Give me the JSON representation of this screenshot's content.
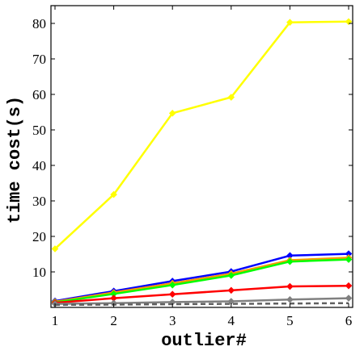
{
  "chart_data": {
    "type": "line",
    "title": "",
    "xlabel": "outlier#",
    "ylabel": "time cost(s)",
    "x": [
      1,
      2,
      3,
      4,
      5,
      6
    ],
    "xticks": [
      "1",
      "2",
      "3",
      "4",
      "5",
      "6"
    ],
    "xlim": [
      1,
      6
    ],
    "yticks": [
      "10",
      "20",
      "30",
      "40",
      "50",
      "60",
      "70",
      "80"
    ],
    "ylim": [
      0,
      85
    ],
    "grid": false,
    "legend": "none",
    "series": [
      {
        "color": "#ffff00",
        "marker": "diamond",
        "dash": "solid",
        "values": [
          16.5,
          31.8,
          54.7,
          59.2,
          80.3,
          80.5
        ]
      },
      {
        "color": "#0000ff",
        "marker": "diamond",
        "dash": "solid",
        "values": [
          1.8,
          4.6,
          7.4,
          10.1,
          14.6,
          15.1
        ]
      },
      {
        "color": "#ff9900",
        "marker": "diamond",
        "dash": "solid",
        "values": [
          1.6,
          4.2,
          6.8,
          9.5,
          13.3,
          14.0
        ]
      },
      {
        "color": "#00ff00",
        "marker": "diamond",
        "dash": "solid",
        "values": [
          1.4,
          3.8,
          6.3,
          9.0,
          12.9,
          13.5
        ]
      },
      {
        "color": "#ff0000",
        "marker": "diamond",
        "dash": "solid",
        "values": [
          1.3,
          2.6,
          3.7,
          4.8,
          5.9,
          6.1
        ]
      },
      {
        "color": "#808080",
        "marker": "diamond",
        "dash": "solid",
        "values": [
          1.0,
          1.2,
          1.5,
          1.7,
          2.2,
          2.6
        ]
      },
      {
        "color": "#606060",
        "marker": "none",
        "dash": "dashed",
        "values": [
          0.7,
          0.8,
          0.9,
          1.0,
          1.1,
          1.2
        ]
      }
    ]
  }
}
